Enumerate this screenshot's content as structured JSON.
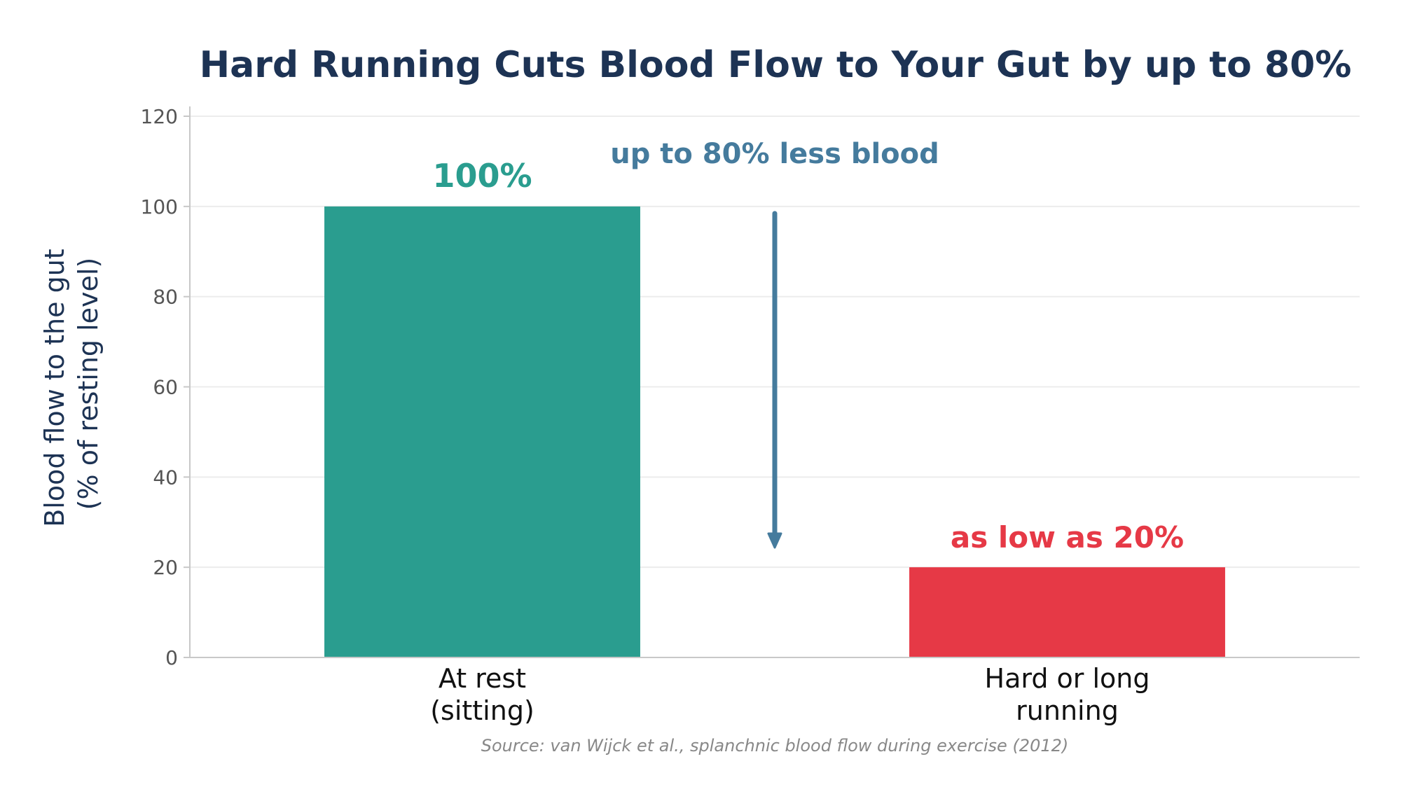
{
  "chart_data": {
    "type": "bar",
    "title": "Hard Running Cuts Blood Flow to Your Gut by up to 80%",
    "ylabel_lines": [
      "Blood flow to the gut",
      "(% of resting level)"
    ],
    "categories": [
      [
        "At rest",
        "(sitting)"
      ],
      [
        "Hard or long",
        "running"
      ]
    ],
    "values": [
      100,
      20
    ],
    "data_labels": [
      "100%",
      "as low as 20%"
    ],
    "ylim": [
      0,
      120
    ],
    "yticks": [
      0,
      20,
      40,
      60,
      80,
      100,
      120
    ],
    "grid": true,
    "arrow": {
      "from": 100,
      "to": 20
    },
    "annotation": "up to 80% less blood",
    "source": "Source: van Wijck et al., splanchnic blood flow during exercise (2012)"
  },
  "colors": {
    "title": "#1d3354",
    "bar_rest": "#2a9d8f",
    "bar_running": "#e63946",
    "arrow": "#457b9d",
    "axis": "#c8c8c8",
    "grid": "#ececec",
    "tick_text": "#555555",
    "source": "#888888"
  }
}
